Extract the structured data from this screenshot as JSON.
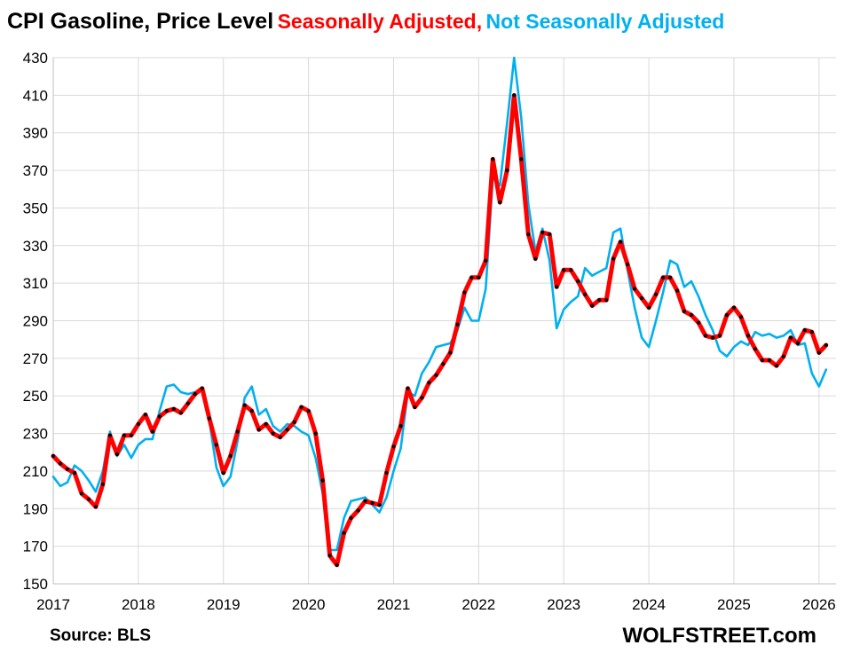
{
  "title": "CPI Gasoline, Price Level",
  "subtitle_sa": "Seasonally Adjusted,",
  "subtitle_nsa": "Not Seasonally Adjusted",
  "source": "Source: BLS",
  "brand": "WOLFSTREET.com",
  "colors": {
    "sa": "#ff0000",
    "nsa": "#00b0f0",
    "markers": "#000000",
    "grid": "#d9d9d9"
  },
  "chart_data": {
    "type": "line",
    "grid": true,
    "ylim": [
      150,
      430
    ],
    "yticks": [
      150,
      170,
      190,
      210,
      230,
      250,
      270,
      290,
      310,
      330,
      350,
      370,
      390,
      410,
      430
    ],
    "xlim": [
      2017,
      2026.2
    ],
    "xticks": [
      "2017",
      "2018",
      "2019",
      "2020",
      "2021",
      "2022",
      "2023",
      "2024",
      "2025",
      "2026"
    ],
    "x_start": "2017-01",
    "series": [
      {
        "name": "Seasonally Adjusted",
        "values": [
          218,
          214,
          211,
          209,
          198,
          195,
          191,
          203,
          229,
          219,
          229,
          229,
          235,
          240,
          231,
          239,
          242,
          243,
          241,
          246,
          251,
          254,
          238,
          224,
          209,
          218,
          231,
          245,
          242,
          232,
          235,
          230,
          228,
          232,
          236,
          244,
          242,
          230,
          205,
          165,
          160,
          177,
          185,
          189,
          194,
          193,
          192,
          209,
          223,
          234,
          254,
          244,
          249,
          257,
          261,
          267,
          273,
          288,
          305,
          313,
          313,
          322,
          376,
          353,
          370,
          410,
          376,
          336,
          323,
          337,
          336,
          308,
          317,
          317,
          311,
          304,
          298,
          301,
          301,
          323,
          332,
          320,
          307,
          302,
          297,
          304,
          313,
          313,
          306,
          295,
          293,
          289,
          282,
          281,
          282,
          293,
          297,
          292,
          282,
          275,
          269,
          269,
          266,
          271,
          281,
          278,
          285,
          284,
          273,
          277
        ]
      },
      {
        "name": "Not Seasonally Adjusted",
        "values": [
          207,
          202,
          204,
          213,
          210,
          205,
          199,
          210,
          231,
          218,
          224,
          217,
          224,
          227,
          227,
          242,
          255,
          256,
          252,
          251,
          252,
          254,
          237,
          212,
          202,
          207,
          226,
          249,
          255,
          240,
          243,
          234,
          231,
          235,
          234,
          231,
          229,
          217,
          198,
          168,
          168,
          185,
          194,
          195,
          196,
          192,
          188,
          196,
          210,
          222,
          252,
          250,
          262,
          268,
          276,
          277,
          278,
          285,
          297,
          290,
          290,
          307,
          366,
          362,
          395,
          430,
          398,
          352,
          327,
          339,
          322,
          286,
          296,
          300,
          303,
          318,
          314,
          316,
          318,
          337,
          339,
          317,
          297,
          281,
          276,
          290,
          305,
          322,
          320,
          308,
          311,
          303,
          293,
          285,
          274,
          271,
          276,
          279,
          277,
          284,
          282,
          283,
          281,
          282,
          285,
          277,
          278,
          262,
          255,
          264
        ]
      }
    ]
  }
}
